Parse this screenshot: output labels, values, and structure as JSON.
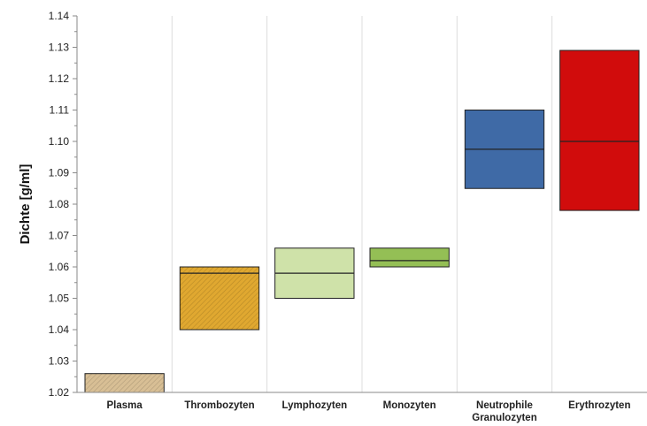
{
  "chart_data": {
    "type": "bar",
    "chart_subtype": "floating range boxes with median line",
    "ylabel": "Dichte [g/ml]",
    "xlabel": "",
    "ylim": [
      1.02,
      1.14
    ],
    "y_ticks": [
      "1.02",
      "1.03",
      "1.04",
      "1.05",
      "1.06",
      "1.07",
      "1.08",
      "1.09",
      "1.10",
      "1.11",
      "1.12",
      "1.13",
      "1.14"
    ],
    "grid": {
      "vertical": true,
      "horizontal": false
    },
    "legend": "none",
    "categories": [
      {
        "name": "Plasma",
        "lines": [
          "Plasma"
        ],
        "low": 1.02,
        "high": 1.026,
        "median": null,
        "color": "#d8bf95",
        "pattern": "hatch"
      },
      {
        "name": "Thrombozyten",
        "lines": [
          "Thrombozyten"
        ],
        "low": 1.04,
        "high": 1.06,
        "median": 1.058,
        "color": "#e0a830",
        "pattern": "hatch"
      },
      {
        "name": "Lymphozyten",
        "lines": [
          "Lymphozyten"
        ],
        "low": 1.05,
        "high": 1.066,
        "median": 1.058,
        "color": "#cfe2a9",
        "pattern": "solid"
      },
      {
        "name": "Monozyten",
        "lines": [
          "Monozyten"
        ],
        "low": 1.06,
        "high": 1.066,
        "median": 1.062,
        "color": "#94bf55",
        "pattern": "solid"
      },
      {
        "name": "Neutrophile Granulozyten",
        "lines": [
          "Neutrophile",
          "Granulozyten"
        ],
        "low": 1.085,
        "high": 1.11,
        "median": 1.0975,
        "color": "#3f6aa6",
        "pattern": "solid"
      },
      {
        "name": "Erythrozyten",
        "lines": [
          "Erythrozyten"
        ],
        "low": 1.078,
        "high": 1.129,
        "median": 1.1,
        "color": "#d10c0c",
        "pattern": "solid"
      }
    ]
  }
}
